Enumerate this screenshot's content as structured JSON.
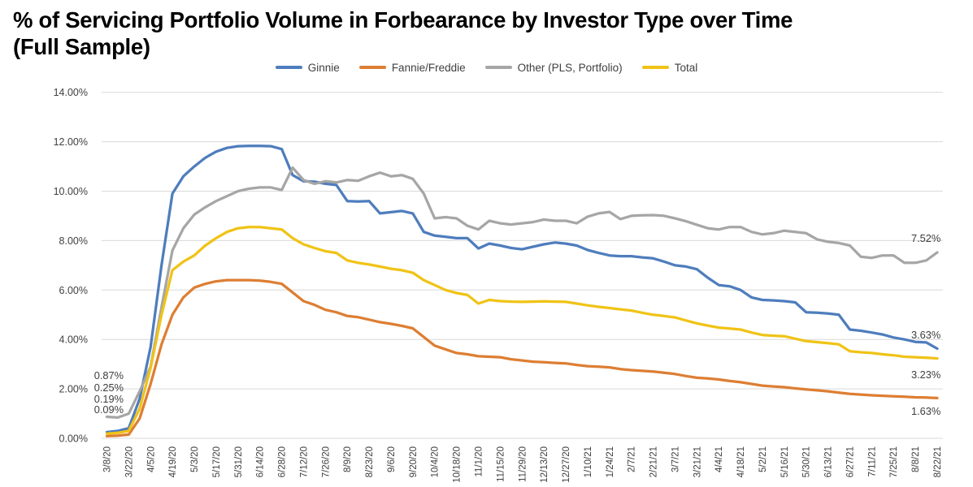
{
  "title": {
    "line1": "% of Servicing Portfolio Volume in Forbearance by Investor Type over Time",
    "line2": "(Full Sample)"
  },
  "chart_data": {
    "type": "line",
    "title": "% of Servicing Portfolio Volume in Forbearance by Investor Type over Time (Full Sample)",
    "xlabel": "",
    "ylabel": "",
    "ylim": [
      0,
      14
    ],
    "grid": true,
    "legend_position": "top",
    "y_ticks": [
      "0.00%",
      "2.00%",
      "4.00%",
      "6.00%",
      "8.00%",
      "10.00%",
      "12.00%",
      "14.00%"
    ],
    "x_tick_every": 2,
    "x": [
      "3/8/20",
      "3/15/20",
      "3/22/20",
      "3/29/20",
      "4/5/20",
      "4/12/20",
      "4/19/20",
      "4/26/20",
      "5/3/20",
      "5/10/20",
      "5/17/20",
      "5/24/20",
      "5/31/20",
      "6/7/20",
      "6/14/20",
      "6/21/20",
      "6/28/20",
      "7/5/20",
      "7/12/20",
      "7/19/20",
      "7/26/20",
      "8/2/20",
      "8/9/20",
      "8/16/20",
      "8/23/20",
      "8/30/20",
      "9/6/20",
      "9/13/20",
      "9/20/20",
      "9/27/20",
      "10/4/20",
      "10/11/20",
      "10/18/20",
      "10/25/20",
      "11/1/20",
      "11/8/20",
      "11/15/20",
      "11/22/20",
      "11/29/20",
      "12/6/20",
      "12/13/20",
      "12/20/20",
      "12/27/20",
      "1/3/21",
      "1/10/21",
      "1/17/21",
      "1/24/21",
      "1/31/21",
      "2/7/21",
      "2/14/21",
      "2/21/21",
      "2/28/21",
      "3/7/21",
      "3/14/21",
      "3/21/21",
      "3/28/21",
      "4/4/21",
      "4/11/21",
      "4/18/21",
      "4/25/21",
      "5/2/21",
      "5/9/21",
      "5/16/21",
      "5/23/21",
      "5/30/21",
      "6/6/21",
      "6/13/21",
      "6/20/21",
      "6/27/21",
      "7/4/21",
      "7/11/21",
      "7/18/21",
      "7/25/21",
      "8/1/21",
      "8/8/21",
      "8/15/21",
      "8/22/21"
    ],
    "series": [
      {
        "name": "Ginnie",
        "color": "#4e7dbd",
        "first_point_label": "0.25%",
        "last_point_label": "3.63%",
        "values": [
          0.25,
          0.3,
          0.41,
          1.6,
          3.7,
          7.0,
          9.9,
          10.6,
          11.0,
          11.35,
          11.6,
          11.75,
          11.82,
          11.83,
          11.83,
          11.82,
          11.7,
          10.65,
          10.4,
          10.38,
          10.3,
          10.25,
          9.6,
          9.58,
          9.6,
          9.1,
          9.15,
          9.2,
          9.1,
          8.35,
          8.2,
          8.15,
          8.1,
          8.1,
          7.68,
          7.88,
          7.8,
          7.7,
          7.65,
          7.75,
          7.85,
          7.92,
          7.88,
          7.8,
          7.62,
          7.5,
          7.4,
          7.37,
          7.37,
          7.32,
          7.28,
          7.15,
          7.0,
          6.95,
          6.84,
          6.5,
          6.2,
          6.15,
          6.0,
          5.7,
          5.6,
          5.58,
          5.55,
          5.5,
          5.1,
          5.08,
          5.05,
          5.0,
          4.4,
          4.35,
          4.28,
          4.2,
          4.08,
          4.0,
          3.9,
          3.88,
          3.63
        ]
      },
      {
        "name": "Fannie/Freddie",
        "color": "#dd7e33",
        "first_point_label": "0.09%",
        "last_point_label": "1.63%",
        "values": [
          0.09,
          0.11,
          0.15,
          0.8,
          2.2,
          3.8,
          5.0,
          5.7,
          6.1,
          6.25,
          6.35,
          6.4,
          6.4,
          6.4,
          6.38,
          6.33,
          6.25,
          5.9,
          5.55,
          5.4,
          5.2,
          5.1,
          4.95,
          4.9,
          4.8,
          4.7,
          4.63,
          4.55,
          4.45,
          4.1,
          3.75,
          3.6,
          3.45,
          3.4,
          3.32,
          3.3,
          3.28,
          3.2,
          3.15,
          3.1,
          3.08,
          3.05,
          3.03,
          2.97,
          2.92,
          2.9,
          2.87,
          2.8,
          2.76,
          2.73,
          2.7,
          2.65,
          2.6,
          2.52,
          2.45,
          2.42,
          2.38,
          2.32,
          2.27,
          2.2,
          2.13,
          2.1,
          2.07,
          2.02,
          1.98,
          1.94,
          1.9,
          1.85,
          1.8,
          1.77,
          1.74,
          1.72,
          1.7,
          1.68,
          1.66,
          1.65,
          1.63
        ]
      },
      {
        "name": "Other (PLS, Portfolio)",
        "color": "#a6a6a6",
        "first_point_label": "0.87%",
        "last_point_label": "7.52%",
        "values": [
          0.87,
          0.84,
          1.0,
          1.9,
          2.9,
          5.3,
          7.6,
          8.5,
          9.05,
          9.35,
          9.6,
          9.8,
          10.0,
          10.1,
          10.15,
          10.15,
          10.05,
          10.95,
          10.45,
          10.3,
          10.4,
          10.35,
          10.45,
          10.42,
          10.6,
          10.75,
          10.6,
          10.65,
          10.5,
          9.9,
          8.9,
          8.95,
          8.9,
          8.6,
          8.45,
          8.8,
          8.7,
          8.65,
          8.7,
          8.75,
          8.85,
          8.8,
          8.8,
          8.7,
          8.97,
          9.1,
          9.16,
          8.87,
          9.0,
          9.02,
          9.03,
          9.0,
          8.9,
          8.78,
          8.64,
          8.5,
          8.45,
          8.55,
          8.55,
          8.35,
          8.25,
          8.3,
          8.4,
          8.35,
          8.3,
          8.05,
          7.95,
          7.9,
          7.8,
          7.35,
          7.3,
          7.4,
          7.4,
          7.1,
          7.1,
          7.2,
          7.52
        ]
      },
      {
        "name": "Total",
        "color": "#f0c316",
        "first_point_label": "0.19%",
        "last_point_label": "3.23%",
        "values": [
          0.19,
          0.22,
          0.3,
          1.2,
          2.85,
          5.0,
          6.8,
          7.15,
          7.4,
          7.8,
          8.1,
          8.35,
          8.5,
          8.55,
          8.55,
          8.5,
          8.45,
          8.1,
          7.85,
          7.7,
          7.57,
          7.5,
          7.2,
          7.1,
          7.03,
          6.95,
          6.86,
          6.8,
          6.7,
          6.4,
          6.2,
          6.0,
          5.88,
          5.8,
          5.45,
          5.6,
          5.55,
          5.53,
          5.52,
          5.53,
          5.54,
          5.53,
          5.52,
          5.45,
          5.38,
          5.32,
          5.27,
          5.22,
          5.17,
          5.08,
          5.0,
          4.95,
          4.89,
          4.77,
          4.65,
          4.56,
          4.48,
          4.44,
          4.4,
          4.28,
          4.18,
          4.15,
          4.13,
          4.03,
          3.93,
          3.89,
          3.85,
          3.8,
          3.52,
          3.48,
          3.45,
          3.4,
          3.36,
          3.3,
          3.28,
          3.26,
          3.23
        ]
      }
    ]
  }
}
